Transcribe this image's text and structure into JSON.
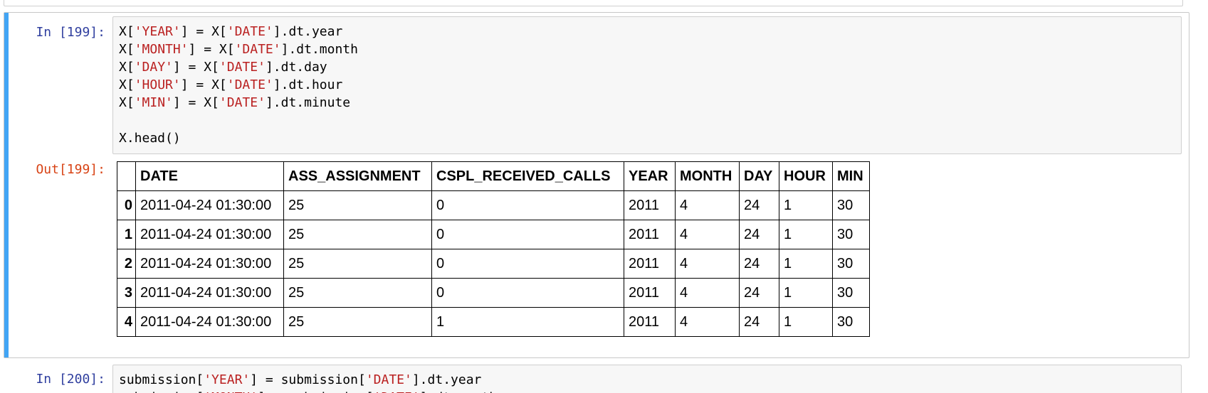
{
  "cell_199": {
    "in_prompt": "In [199]:",
    "out_prompt": "Out[199]:",
    "code_lines": [
      [
        {
          "t": "X["
        },
        {
          "t": "'YEAR'",
          "s": 1
        },
        {
          "t": "] = X["
        },
        {
          "t": "'DATE'",
          "s": 1
        },
        {
          "t": "].dt.year"
        }
      ],
      [
        {
          "t": "X["
        },
        {
          "t": "'MONTH'",
          "s": 1
        },
        {
          "t": "] = X["
        },
        {
          "t": "'DATE'",
          "s": 1
        },
        {
          "t": "].dt.month"
        }
      ],
      [
        {
          "t": "X["
        },
        {
          "t": "'DAY'",
          "s": 1
        },
        {
          "t": "] = X["
        },
        {
          "t": "'DATE'",
          "s": 1
        },
        {
          "t": "].dt.day"
        }
      ],
      [
        {
          "t": "X["
        },
        {
          "t": "'HOUR'",
          "s": 1
        },
        {
          "t": "] = X["
        },
        {
          "t": "'DATE'",
          "s": 1
        },
        {
          "t": "].dt.hour"
        }
      ],
      [
        {
          "t": "X["
        },
        {
          "t": "'MIN'",
          "s": 1
        },
        {
          "t": "] = X["
        },
        {
          "t": "'DATE'",
          "s": 1
        },
        {
          "t": "].dt.minute"
        }
      ],
      [],
      [
        {
          "t": "X.head()"
        }
      ]
    ],
    "table": {
      "columns": [
        "",
        "DATE",
        "ASS_ASSIGNMENT",
        "CSPL_RECEIVED_CALLS",
        "YEAR",
        "MONTH",
        "DAY",
        "HOUR",
        "MIN"
      ],
      "rows": [
        {
          "index": "0",
          "cells": [
            "2011-04-24 01:30:00",
            "25",
            "0",
            "2011",
            "4",
            "24",
            "1",
            "30"
          ]
        },
        {
          "index": "1",
          "cells": [
            "2011-04-24 01:30:00",
            "25",
            "0",
            "2011",
            "4",
            "24",
            "1",
            "30"
          ]
        },
        {
          "index": "2",
          "cells": [
            "2011-04-24 01:30:00",
            "25",
            "0",
            "2011",
            "4",
            "24",
            "1",
            "30"
          ]
        },
        {
          "index": "3",
          "cells": [
            "2011-04-24 01:30:00",
            "25",
            "0",
            "2011",
            "4",
            "24",
            "1",
            "30"
          ]
        },
        {
          "index": "4",
          "cells": [
            "2011-04-24 01:30:00",
            "25",
            "1",
            "2011",
            "4",
            "24",
            "1",
            "30"
          ]
        }
      ]
    }
  },
  "cell_200": {
    "in_prompt": "In [200]:",
    "code_lines": [
      [
        {
          "t": "submission["
        },
        {
          "t": "'YEAR'",
          "s": 1
        },
        {
          "t": "] = submission["
        },
        {
          "t": "'DATE'",
          "s": 1
        },
        {
          "t": "].dt.year"
        }
      ],
      [
        {
          "t": "submission["
        },
        {
          "t": "'MONTH'",
          "s": 1
        },
        {
          "t": "] = submission["
        },
        {
          "t": "'DATE'",
          "s": 1
        },
        {
          "t": "].dt.month"
        }
      ]
    ]
  },
  "colors": {
    "selected_bar": "#42a5f5",
    "in_prompt": "#303f9f",
    "out_prompt": "#d84315",
    "string": "#ba2121",
    "input_bg": "#f7f7f7"
  }
}
